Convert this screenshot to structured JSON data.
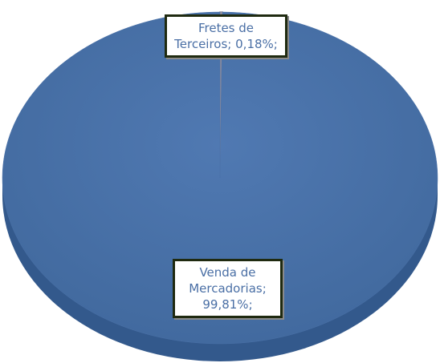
{
  "chart_data": {
    "type": "pie",
    "categories": [
      "Fretes de Terceiros",
      "Venda de Mercadorias"
    ],
    "values": [
      0.18,
      99.81
    ],
    "value_labels": [
      "0,18%",
      "99,81%"
    ],
    "label_separator": ";",
    "colors": [
      "#8c8c9c",
      "#4a71a8"
    ]
  }
}
